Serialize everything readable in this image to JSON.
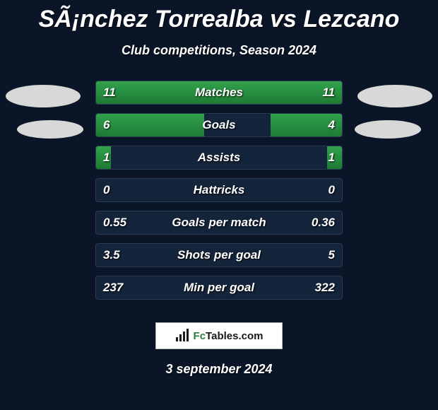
{
  "title": "SÃ¡nchez Torrealba vs Lezcano",
  "subtitle": "Club competitions, Season 2024",
  "background_color": "#0a1628",
  "bar_color": "#31a24c",
  "row_bg_color": "#14243a",
  "row_border_color": "#2a3a52",
  "text_color": "#ffffff",
  "stats": [
    {
      "left_value": "11",
      "label": "Matches",
      "right_value": "11",
      "left_pct": 50,
      "right_pct": 50
    },
    {
      "left_value": "6",
      "label": "Goals",
      "right_value": "4",
      "left_pct": 44,
      "right_pct": 29
    },
    {
      "left_value": "1",
      "label": "Assists",
      "right_value": "1",
      "left_pct": 6,
      "right_pct": 6
    },
    {
      "left_value": "0",
      "label": "Hattricks",
      "right_value": "0",
      "left_pct": 0,
      "right_pct": 0
    },
    {
      "left_value": "0.55",
      "label": "Goals per match",
      "right_value": "0.36",
      "left_pct": 0,
      "right_pct": 0
    },
    {
      "left_value": "3.5",
      "label": "Shots per goal",
      "right_value": "5",
      "left_pct": 0,
      "right_pct": 0
    },
    {
      "left_value": "237",
      "label": "Min per goal",
      "right_value": "322",
      "left_pct": 0,
      "right_pct": 0
    }
  ],
  "footer": {
    "brand_prefix": "Fc",
    "brand_suffix": "Tables.com",
    "date": "3 september 2024"
  }
}
